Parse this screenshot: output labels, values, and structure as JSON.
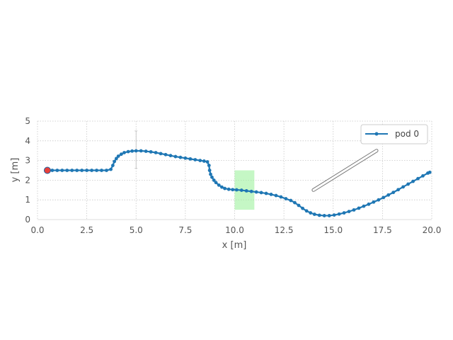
{
  "chart_data": {
    "type": "line",
    "xlabel": "x [m]",
    "ylabel": "y [m]",
    "xlim": [
      0,
      20
    ],
    "ylim": [
      0,
      5
    ],
    "x_ticks": [
      "0.0",
      "2.5",
      "5.0",
      "7.5",
      "10.0",
      "12.5",
      "15.0",
      "17.5",
      "20.0"
    ],
    "y_ticks": [
      "0",
      "1",
      "2",
      "3",
      "4",
      "5"
    ],
    "grid": true,
    "legend_position": "top-right",
    "series": [
      {
        "name": "pod 0",
        "color": "#1f77b4",
        "points": [
          [
            0.5,
            2.5
          ],
          [
            0.75,
            2.5
          ],
          [
            1.0,
            2.5
          ],
          [
            1.25,
            2.5
          ],
          [
            1.5,
            2.5
          ],
          [
            1.75,
            2.5
          ],
          [
            2.0,
            2.5
          ],
          [
            2.25,
            2.5
          ],
          [
            2.5,
            2.5
          ],
          [
            2.75,
            2.5
          ],
          [
            3.0,
            2.5
          ],
          [
            3.25,
            2.5
          ],
          [
            3.5,
            2.5
          ],
          [
            3.72,
            2.55
          ],
          [
            3.82,
            2.75
          ],
          [
            3.9,
            2.95
          ],
          [
            4.0,
            3.1
          ],
          [
            4.1,
            3.22
          ],
          [
            4.25,
            3.32
          ],
          [
            4.4,
            3.4
          ],
          [
            4.6,
            3.45
          ],
          [
            4.8,
            3.48
          ],
          [
            5.0,
            3.49
          ],
          [
            5.25,
            3.49
          ],
          [
            5.5,
            3.47
          ],
          [
            5.75,
            3.44
          ],
          [
            6.0,
            3.4
          ],
          [
            6.25,
            3.35
          ],
          [
            6.5,
            3.3
          ],
          [
            6.75,
            3.25
          ],
          [
            7.0,
            3.2
          ],
          [
            7.25,
            3.16
          ],
          [
            7.5,
            3.12
          ],
          [
            7.75,
            3.08
          ],
          [
            8.0,
            3.04
          ],
          [
            8.25,
            3.0
          ],
          [
            8.45,
            2.97
          ],
          [
            8.62,
            2.93
          ],
          [
            8.7,
            2.75
          ],
          [
            8.73,
            2.5
          ],
          [
            8.78,
            2.3
          ],
          [
            8.85,
            2.15
          ],
          [
            8.95,
            2.0
          ],
          [
            9.05,
            1.88
          ],
          [
            9.2,
            1.75
          ],
          [
            9.35,
            1.65
          ],
          [
            9.5,
            1.58
          ],
          [
            9.7,
            1.54
          ],
          [
            9.9,
            1.52
          ],
          [
            10.1,
            1.51
          ],
          [
            10.35,
            1.49
          ],
          [
            10.6,
            1.46
          ],
          [
            10.85,
            1.43
          ],
          [
            11.1,
            1.4
          ],
          [
            11.35,
            1.37
          ],
          [
            11.6,
            1.33
          ],
          [
            11.85,
            1.28
          ],
          [
            12.1,
            1.22
          ],
          [
            12.35,
            1.15
          ],
          [
            12.6,
            1.06
          ],
          [
            12.85,
            0.97
          ],
          [
            13.05,
            0.86
          ],
          [
            13.25,
            0.72
          ],
          [
            13.45,
            0.57
          ],
          [
            13.65,
            0.44
          ],
          [
            13.85,
            0.34
          ],
          [
            14.05,
            0.27
          ],
          [
            14.3,
            0.22
          ],
          [
            14.55,
            0.2
          ],
          [
            14.8,
            0.2
          ],
          [
            15.05,
            0.23
          ],
          [
            15.3,
            0.28
          ],
          [
            15.55,
            0.34
          ],
          [
            15.8,
            0.41
          ],
          [
            16.05,
            0.49
          ],
          [
            16.3,
            0.58
          ],
          [
            16.55,
            0.68
          ],
          [
            16.8,
            0.78
          ],
          [
            17.05,
            0.89
          ],
          [
            17.3,
            1.0
          ],
          [
            17.55,
            1.12
          ],
          [
            17.8,
            1.25
          ],
          [
            18.05,
            1.38
          ],
          [
            18.3,
            1.52
          ],
          [
            18.55,
            1.66
          ],
          [
            18.8,
            1.8
          ],
          [
            19.05,
            1.94
          ],
          [
            19.3,
            2.08
          ],
          [
            19.55,
            2.22
          ],
          [
            19.8,
            2.36
          ],
          [
            19.9,
            2.4
          ]
        ]
      }
    ],
    "start_marker": {
      "x": 0.5,
      "y": 2.5,
      "color": "#e8403a"
    },
    "region": {
      "x": [
        10.0,
        11.0
      ],
      "y": [
        0.5,
        2.5
      ],
      "color": "#9ef29e"
    },
    "annotations": {
      "error_bar": {
        "x": 5.0,
        "y": [
          2.6,
          4.5
        ]
      },
      "diagonal_bar": {
        "from": [
          14.0,
          1.5
        ],
        "to": [
          17.2,
          3.5
        ]
      }
    }
  }
}
